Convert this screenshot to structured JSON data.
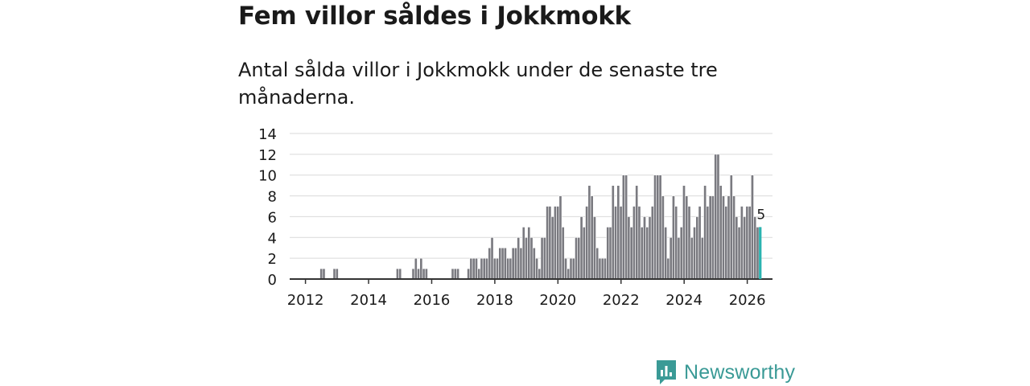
{
  "header": {
    "title": "Fem villor såldes i Jokkmokk",
    "subtitle": "Antal sålda villor i Jokkmokk under de senaste tre månaderna."
  },
  "colors": {
    "bar": "#7a7a80",
    "bar_stroke": "#ffffff",
    "highlight": "#2ab3b0",
    "grid": "#d9d9d9",
    "axis": "#333333",
    "brand": "#3a9a96"
  },
  "chart_data": {
    "type": "bar",
    "title": "Fem villor såldes i Jokkmokk",
    "subtitle": "Antal sålda villor i Jokkmokk under de senaste tre månaderna.",
    "xlabel": "",
    "ylabel": "",
    "ylim": [
      0,
      14
    ],
    "yticks": [
      0,
      2,
      4,
      6,
      8,
      10,
      12,
      14
    ],
    "xticks": [
      "2012",
      "2014",
      "2016",
      "2018",
      "2020",
      "2022",
      "2024",
      "2026"
    ],
    "grid": true,
    "x_start": 2011.5,
    "x_end": 2026.8,
    "period_start": 2011.75,
    "bar_step_years": 0.0833,
    "values": [
      0,
      0,
      0,
      0,
      0,
      0,
      0,
      0,
      0,
      1,
      1,
      0,
      0,
      0,
      1,
      1,
      0,
      0,
      0,
      0,
      0,
      0,
      0,
      0,
      0,
      0,
      0,
      0,
      0,
      0,
      0,
      0,
      0,
      0,
      0,
      0,
      0,
      0,
      1,
      1,
      0,
      0,
      0,
      0,
      1,
      2,
      1,
      2,
      1,
      1,
      0,
      0,
      0,
      0,
      0,
      0,
      0,
      0,
      0,
      1,
      1,
      1,
      0,
      0,
      0,
      1,
      2,
      2,
      2,
      1,
      2,
      2,
      2,
      3,
      4,
      2,
      2,
      3,
      3,
      3,
      2,
      2,
      3,
      3,
      4,
      3,
      5,
      4,
      5,
      4,
      3,
      2,
      1,
      4,
      4,
      7,
      7,
      6,
      7,
      7,
      8,
      5,
      2,
      1,
      2,
      2,
      4,
      4,
      6,
      5,
      7,
      9,
      8,
      6,
      3,
      2,
      2,
      2,
      5,
      5,
      9,
      7,
      9,
      7,
      10,
      10,
      6,
      5,
      7,
      9,
      7,
      5,
      6,
      5,
      6,
      7,
      10,
      10,
      10,
      8,
      5,
      2,
      4,
      8,
      7,
      4,
      5,
      9,
      8,
      7,
      4,
      5,
      6,
      7,
      4,
      9,
      7,
      8,
      8,
      12,
      12,
      9,
      8,
      7,
      8,
      10,
      8,
      6,
      5,
      7,
      6,
      7,
      7,
      10,
      6,
      5
    ],
    "highlighted_value": 5,
    "highlighted_label": "5"
  },
  "footer": {
    "logo_text": "Newsworthy",
    "logo_icon": "bar-chart-chat-icon"
  }
}
